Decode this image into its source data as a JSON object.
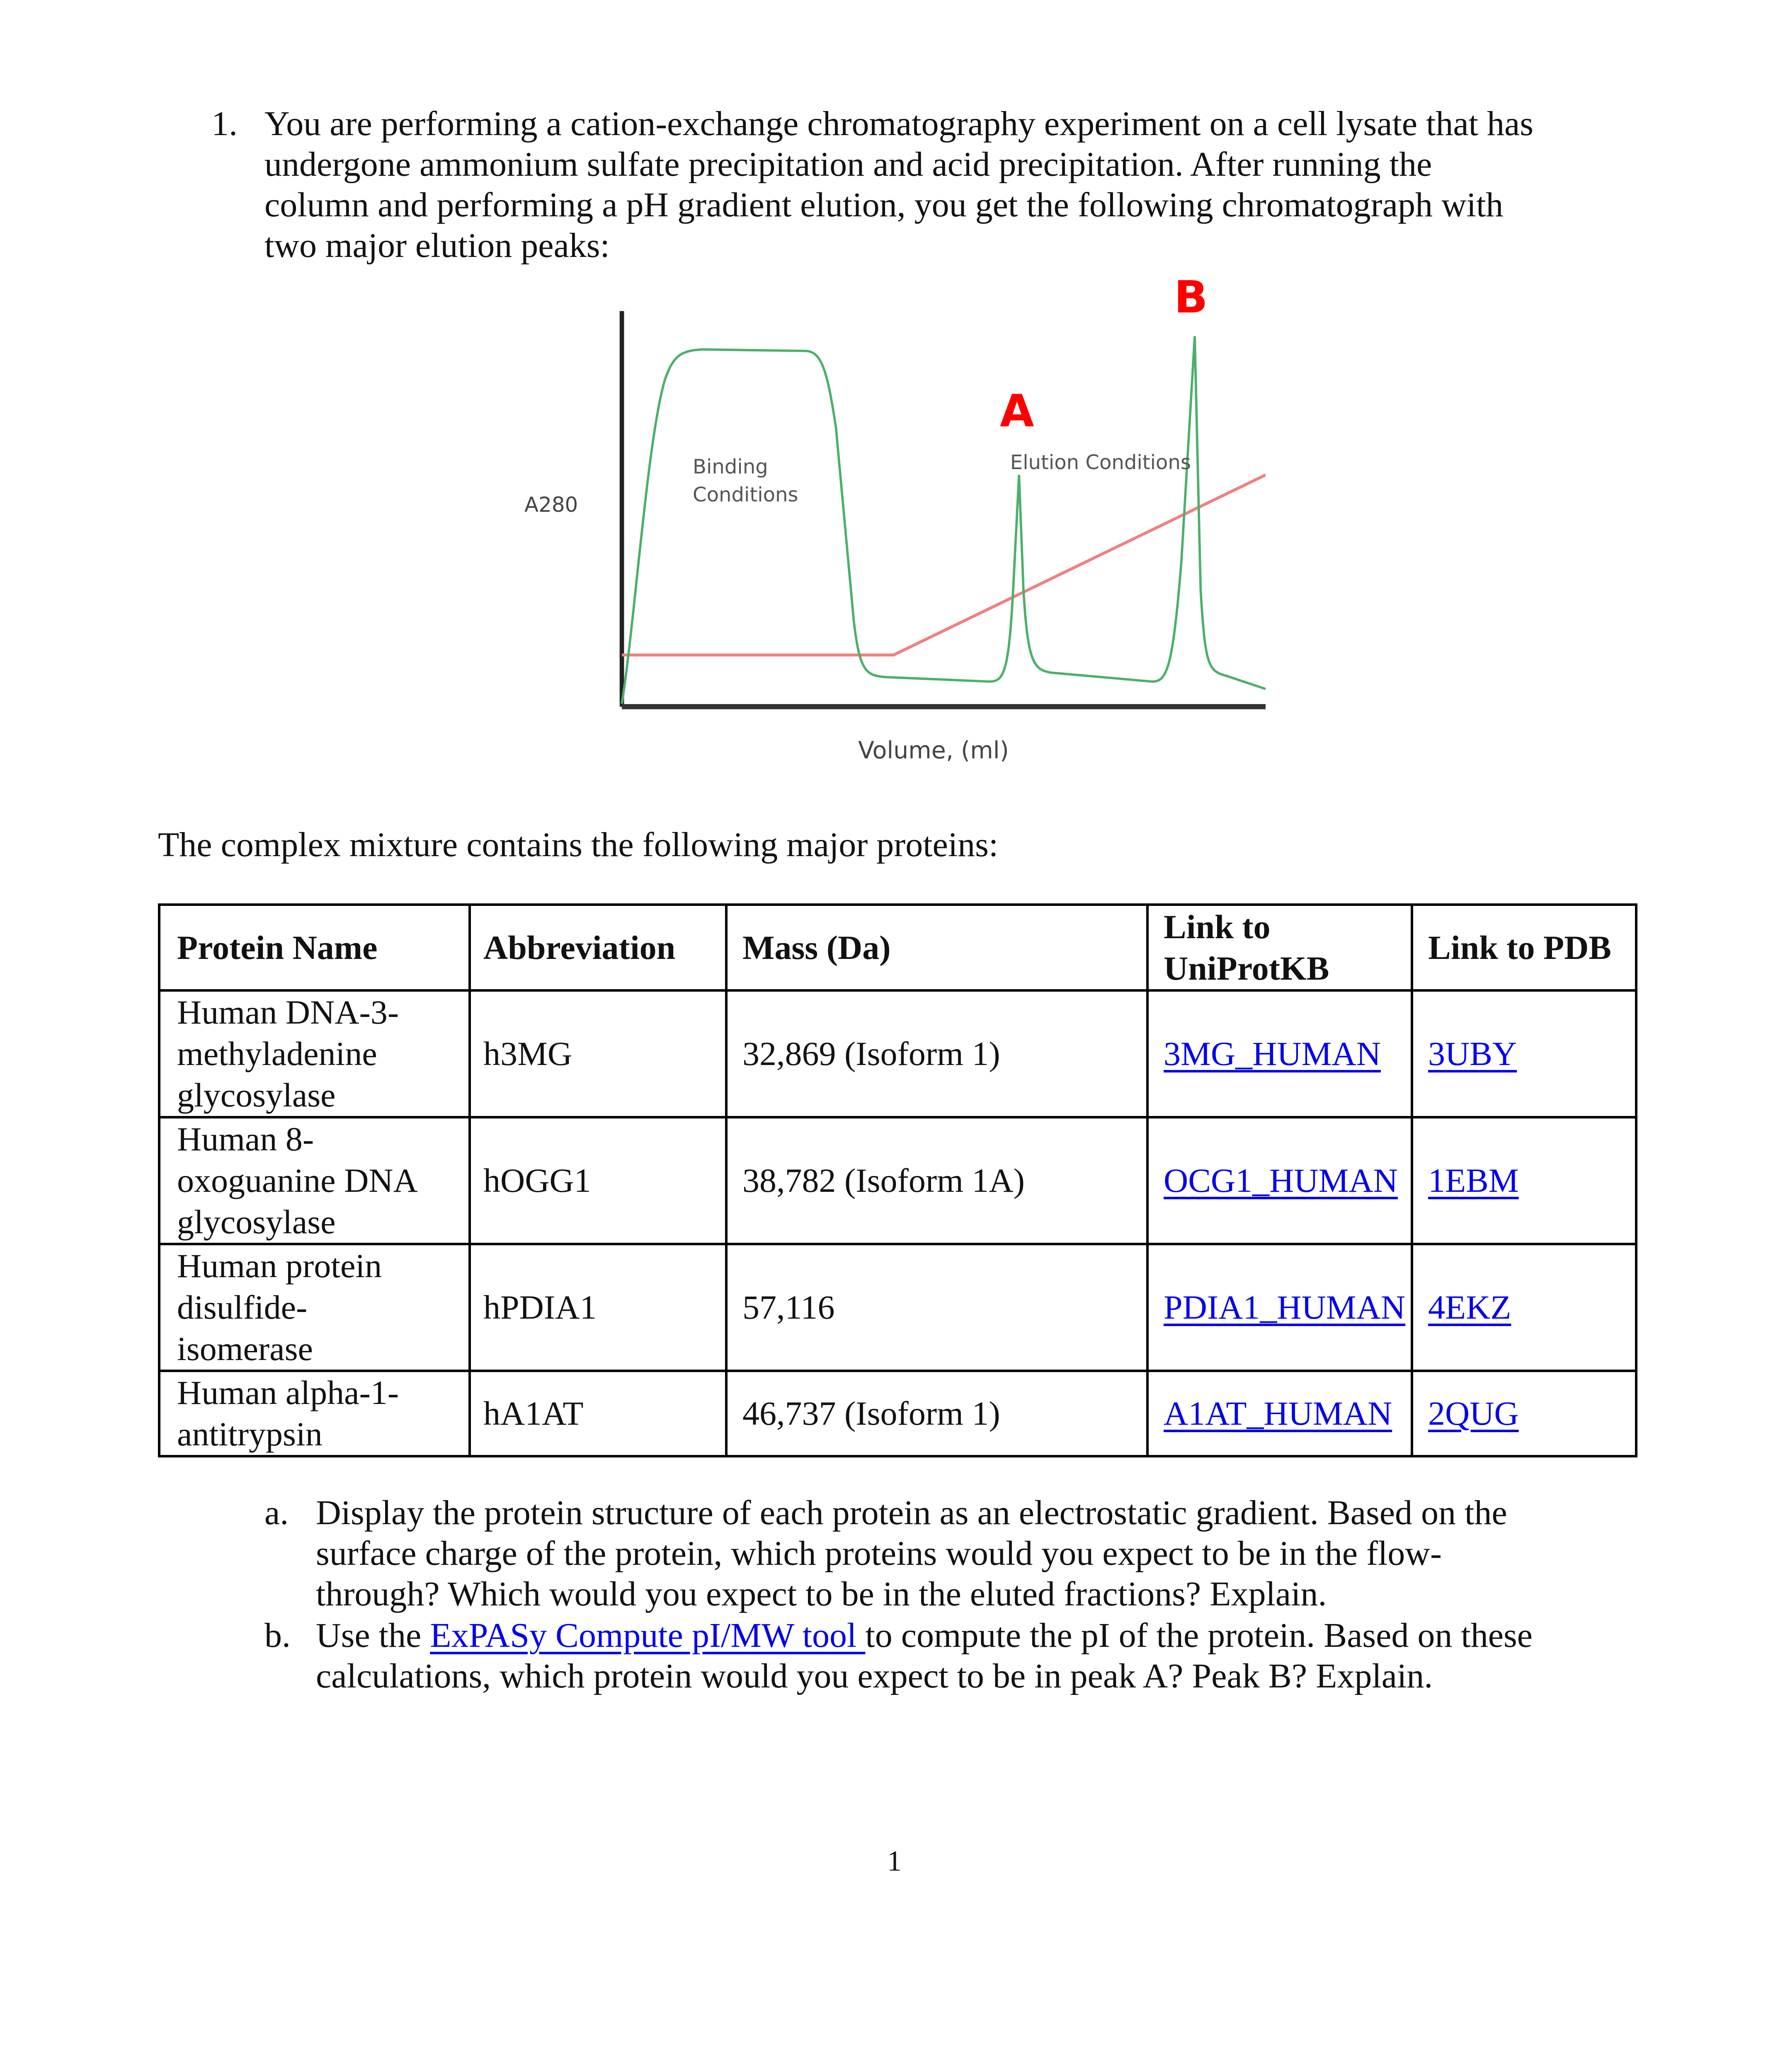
{
  "question": {
    "number": "1.",
    "lines": [
      "You are performing a cation-exchange chromatography experiment on a cell lysate that has",
      "undergone ammonium sulfate precipitation and acid precipitation. After running the",
      "column and performing a pH gradient elution, you get the following chromatograph with",
      "two major elution peaks:"
    ]
  },
  "figure": {
    "y_label": "A280",
    "x_label": "Volume, (ml)",
    "binding_label": [
      "Binding",
      "Conditions"
    ],
    "elution_label": "Elution Conditions",
    "peak_a": "A",
    "peak_b": "B",
    "colors": {
      "absorbance": "#4caf6a",
      "gradient": "#f08080",
      "peak_labels": "#ff0000"
    }
  },
  "intro": "The complex mixture contains the following major proteins:",
  "table": {
    "headers": {
      "name": "Protein Name",
      "abbr": "Abbreviation",
      "mass": "Mass (Da)",
      "uniprot": [
        "Link to",
        "UniProtKB"
      ],
      "pdb": "Link to PDB"
    },
    "rows": [
      {
        "name": [
          "Human DNA-3-",
          "methyladenine",
          "glycosylase"
        ],
        "abbr": "h3MG",
        "mass": "32,869 (Isoform 1)",
        "uniprot": "3MG_HUMAN",
        "pdb": "3UBY"
      },
      {
        "name": [
          "Human 8-",
          "oxoguanine DNA",
          "glycosylase"
        ],
        "abbr": "hOGG1",
        "mass": "38,782 (Isoform 1A)",
        "uniprot": "OCG1_HUMAN",
        "pdb": "1EBM"
      },
      {
        "name": [
          "Human protein",
          "disulfide-",
          "isomerase"
        ],
        "abbr": "hPDIA1",
        "mass": "57,116",
        "uniprot": "PDIA1_HUMAN",
        "pdb": "4EKZ"
      },
      {
        "name": [
          "Human alpha-1-",
          "antitrypsin"
        ],
        "abbr": "hA1AT",
        "mass": "46,737 (Isoform 1)",
        "uniprot": "A1AT_HUMAN",
        "pdb": "2QUG"
      }
    ]
  },
  "subquestions": {
    "a": {
      "marker": "a.",
      "lines": [
        "Display the protein structure of each protein as an electrostatic gradient. Based on the",
        "surface charge of the protein, which proteins would you expect to be in the flow-",
        "through? Which would you expect to be in the eluted fractions? Explain."
      ]
    },
    "b": {
      "marker": "b.",
      "pre": "Use the ",
      "link": "ExPASy Compute pI/MW tool ",
      "post": "to compute the pI of the protein. Based on these",
      "line2": "calculations, which protein would you expect to be in peak A? Peak B? Explain."
    }
  },
  "page_number": "1"
}
